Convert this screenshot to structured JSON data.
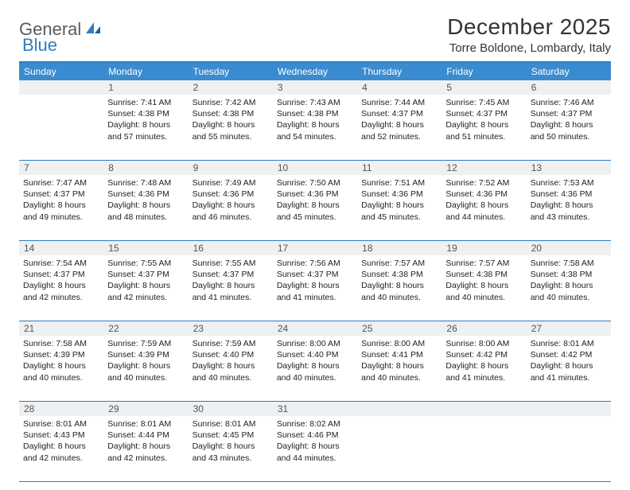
{
  "logo": {
    "text1": "General",
    "text2": "Blue"
  },
  "title": "December 2025",
  "location": "Torre Boldone, Lombardy, Italy",
  "colors": {
    "header_bar": "#3a8bd0",
    "rule": "#2f7dc0",
    "daynum_bg": "#eef0f1",
    "text": "#222222",
    "logo_gray": "#5a5a5a",
    "logo_blue": "#2f7dc0"
  },
  "days_of_week": [
    "Sunday",
    "Monday",
    "Tuesday",
    "Wednesday",
    "Thursday",
    "Friday",
    "Saturday"
  ],
  "weeks": [
    [
      {
        "n": "",
        "lines": []
      },
      {
        "n": "1",
        "lines": [
          "Sunrise: 7:41 AM",
          "Sunset: 4:38 PM",
          "Daylight: 8 hours",
          "and 57 minutes."
        ]
      },
      {
        "n": "2",
        "lines": [
          "Sunrise: 7:42 AM",
          "Sunset: 4:38 PM",
          "Daylight: 8 hours",
          "and 55 minutes."
        ]
      },
      {
        "n": "3",
        "lines": [
          "Sunrise: 7:43 AM",
          "Sunset: 4:38 PM",
          "Daylight: 8 hours",
          "and 54 minutes."
        ]
      },
      {
        "n": "4",
        "lines": [
          "Sunrise: 7:44 AM",
          "Sunset: 4:37 PM",
          "Daylight: 8 hours",
          "and 52 minutes."
        ]
      },
      {
        "n": "5",
        "lines": [
          "Sunrise: 7:45 AM",
          "Sunset: 4:37 PM",
          "Daylight: 8 hours",
          "and 51 minutes."
        ]
      },
      {
        "n": "6",
        "lines": [
          "Sunrise: 7:46 AM",
          "Sunset: 4:37 PM",
          "Daylight: 8 hours",
          "and 50 minutes."
        ]
      }
    ],
    [
      {
        "n": "7",
        "lines": [
          "Sunrise: 7:47 AM",
          "Sunset: 4:37 PM",
          "Daylight: 8 hours",
          "and 49 minutes."
        ]
      },
      {
        "n": "8",
        "lines": [
          "Sunrise: 7:48 AM",
          "Sunset: 4:36 PM",
          "Daylight: 8 hours",
          "and 48 minutes."
        ]
      },
      {
        "n": "9",
        "lines": [
          "Sunrise: 7:49 AM",
          "Sunset: 4:36 PM",
          "Daylight: 8 hours",
          "and 46 minutes."
        ]
      },
      {
        "n": "10",
        "lines": [
          "Sunrise: 7:50 AM",
          "Sunset: 4:36 PM",
          "Daylight: 8 hours",
          "and 45 minutes."
        ]
      },
      {
        "n": "11",
        "lines": [
          "Sunrise: 7:51 AM",
          "Sunset: 4:36 PM",
          "Daylight: 8 hours",
          "and 45 minutes."
        ]
      },
      {
        "n": "12",
        "lines": [
          "Sunrise: 7:52 AM",
          "Sunset: 4:36 PM",
          "Daylight: 8 hours",
          "and 44 minutes."
        ]
      },
      {
        "n": "13",
        "lines": [
          "Sunrise: 7:53 AM",
          "Sunset: 4:36 PM",
          "Daylight: 8 hours",
          "and 43 minutes."
        ]
      }
    ],
    [
      {
        "n": "14",
        "lines": [
          "Sunrise: 7:54 AM",
          "Sunset: 4:37 PM",
          "Daylight: 8 hours",
          "and 42 minutes."
        ]
      },
      {
        "n": "15",
        "lines": [
          "Sunrise: 7:55 AM",
          "Sunset: 4:37 PM",
          "Daylight: 8 hours",
          "and 42 minutes."
        ]
      },
      {
        "n": "16",
        "lines": [
          "Sunrise: 7:55 AM",
          "Sunset: 4:37 PM",
          "Daylight: 8 hours",
          "and 41 minutes."
        ]
      },
      {
        "n": "17",
        "lines": [
          "Sunrise: 7:56 AM",
          "Sunset: 4:37 PM",
          "Daylight: 8 hours",
          "and 41 minutes."
        ]
      },
      {
        "n": "18",
        "lines": [
          "Sunrise: 7:57 AM",
          "Sunset: 4:38 PM",
          "Daylight: 8 hours",
          "and 40 minutes."
        ]
      },
      {
        "n": "19",
        "lines": [
          "Sunrise: 7:57 AM",
          "Sunset: 4:38 PM",
          "Daylight: 8 hours",
          "and 40 minutes."
        ]
      },
      {
        "n": "20",
        "lines": [
          "Sunrise: 7:58 AM",
          "Sunset: 4:38 PM",
          "Daylight: 8 hours",
          "and 40 minutes."
        ]
      }
    ],
    [
      {
        "n": "21",
        "lines": [
          "Sunrise: 7:58 AM",
          "Sunset: 4:39 PM",
          "Daylight: 8 hours",
          "and 40 minutes."
        ]
      },
      {
        "n": "22",
        "lines": [
          "Sunrise: 7:59 AM",
          "Sunset: 4:39 PM",
          "Daylight: 8 hours",
          "and 40 minutes."
        ]
      },
      {
        "n": "23",
        "lines": [
          "Sunrise: 7:59 AM",
          "Sunset: 4:40 PM",
          "Daylight: 8 hours",
          "and 40 minutes."
        ]
      },
      {
        "n": "24",
        "lines": [
          "Sunrise: 8:00 AM",
          "Sunset: 4:40 PM",
          "Daylight: 8 hours",
          "and 40 minutes."
        ]
      },
      {
        "n": "25",
        "lines": [
          "Sunrise: 8:00 AM",
          "Sunset: 4:41 PM",
          "Daylight: 8 hours",
          "and 40 minutes."
        ]
      },
      {
        "n": "26",
        "lines": [
          "Sunrise: 8:00 AM",
          "Sunset: 4:42 PM",
          "Daylight: 8 hours",
          "and 41 minutes."
        ]
      },
      {
        "n": "27",
        "lines": [
          "Sunrise: 8:01 AM",
          "Sunset: 4:42 PM",
          "Daylight: 8 hours",
          "and 41 minutes."
        ]
      }
    ],
    [
      {
        "n": "28",
        "lines": [
          "Sunrise: 8:01 AM",
          "Sunset: 4:43 PM",
          "Daylight: 8 hours",
          "and 42 minutes."
        ]
      },
      {
        "n": "29",
        "lines": [
          "Sunrise: 8:01 AM",
          "Sunset: 4:44 PM",
          "Daylight: 8 hours",
          "and 42 minutes."
        ]
      },
      {
        "n": "30",
        "lines": [
          "Sunrise: 8:01 AM",
          "Sunset: 4:45 PM",
          "Daylight: 8 hours",
          "and 43 minutes."
        ]
      },
      {
        "n": "31",
        "lines": [
          "Sunrise: 8:02 AM",
          "Sunset: 4:46 PM",
          "Daylight: 8 hours",
          "and 44 minutes."
        ]
      },
      {
        "n": "",
        "lines": []
      },
      {
        "n": "",
        "lines": []
      },
      {
        "n": "",
        "lines": []
      }
    ]
  ]
}
